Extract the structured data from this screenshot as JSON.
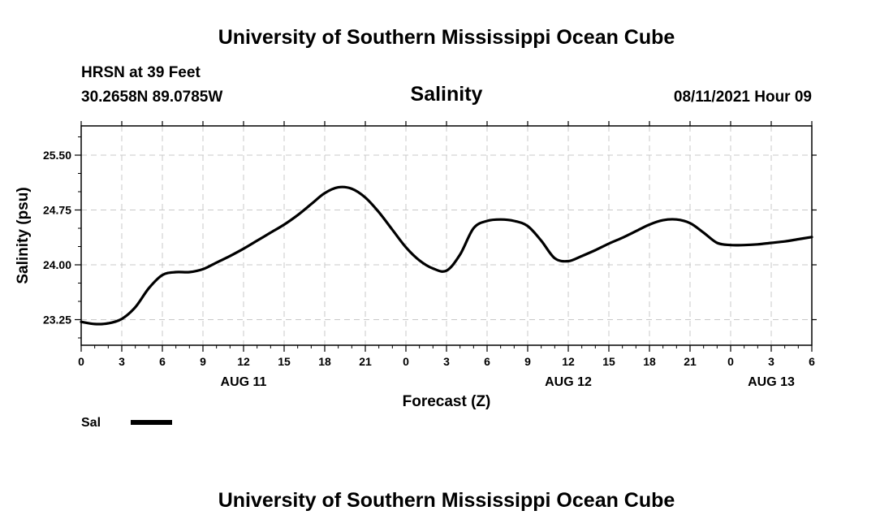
{
  "header": {
    "title_top": "University of Southern Mississippi Ocean Cube",
    "title_bottom": "University of Southern Mississippi Ocean Cube",
    "station": "HRSN at 39 Feet",
    "coords": "30.2658N  89.0785W",
    "datetime": "08/11/2021 Hour 09"
  },
  "chart_data": {
    "type": "line",
    "title": "Salinity",
    "xlabel": "Forecast (Z)",
    "ylabel": "Salinity (psu)",
    "x_unit": "hours since 2021-08-11 00Z",
    "xlim": [
      0,
      54
    ],
    "ylim": [
      22.9,
      25.9
    ],
    "yticks": [
      23.25,
      24.0,
      24.75,
      25.5
    ],
    "ytick_labels": [
      "23.25",
      "24.00",
      "24.75",
      "25.50"
    ],
    "xticks": [
      0,
      3,
      6,
      9,
      12,
      15,
      18,
      21,
      24,
      27,
      30,
      33,
      36,
      39,
      42,
      45,
      48,
      51,
      54
    ],
    "xtick_labels": [
      "0",
      "3",
      "6",
      "9",
      "12",
      "15",
      "18",
      "21",
      "0",
      "3",
      "6",
      "9",
      "12",
      "15",
      "18",
      "21",
      "0",
      "3",
      "6"
    ],
    "date_labels": [
      {
        "x": 12,
        "label": "AUG 11"
      },
      {
        "x": 36,
        "label": "AUG 12"
      },
      {
        "x": 51,
        "label": "AUG 13"
      }
    ],
    "grid": true,
    "legend": "bottom-left",
    "series": [
      {
        "name": "Sal",
        "color": "#000000",
        "x": [
          0,
          1,
          2,
          3,
          4,
          5,
          6,
          7,
          8,
          9,
          10,
          11,
          12,
          13,
          14,
          15,
          16,
          17,
          18,
          19,
          20,
          21,
          22,
          23,
          24,
          25,
          26,
          27,
          28,
          29,
          30,
          31,
          32,
          33,
          34,
          35,
          36,
          37,
          38,
          39,
          40,
          41,
          42,
          43,
          44,
          45,
          46,
          47,
          48,
          49,
          50,
          51,
          52,
          53,
          54
        ],
        "values": [
          23.22,
          23.19,
          23.2,
          23.26,
          23.42,
          23.68,
          23.86,
          23.9,
          23.9,
          23.94,
          24.03,
          24.12,
          24.22,
          24.33,
          24.44,
          24.55,
          24.68,
          24.83,
          24.98,
          25.06,
          25.04,
          24.92,
          24.72,
          24.48,
          24.24,
          24.06,
          23.95,
          23.92,
          24.14,
          24.5,
          24.6,
          24.62,
          24.6,
          24.53,
          24.33,
          24.09,
          24.05,
          24.12,
          24.2,
          24.29,
          24.37,
          24.46,
          24.55,
          24.61,
          24.62,
          24.57,
          24.44,
          24.3,
          24.27,
          24.27,
          24.28,
          24.3,
          24.32,
          24.35,
          24.38
        ]
      }
    ]
  }
}
